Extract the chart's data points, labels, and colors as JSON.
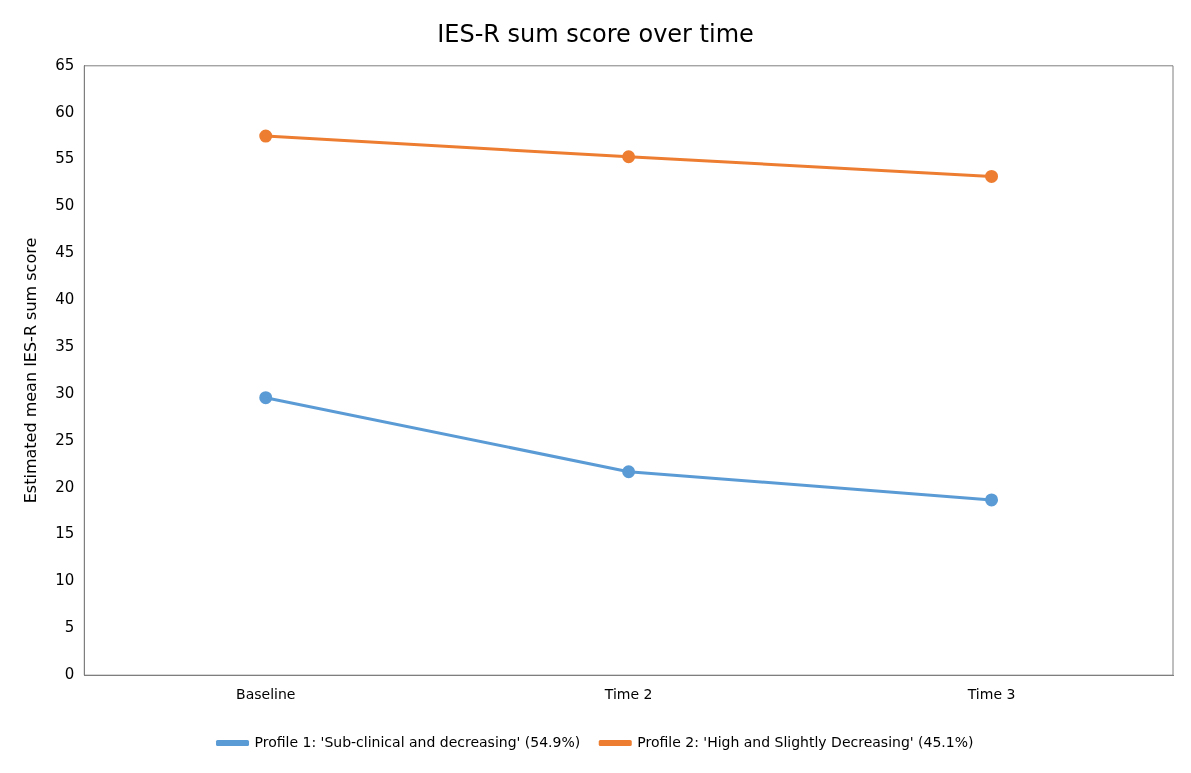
{
  "chart_data": {
    "type": "line",
    "title": "IES-R sum score over time",
    "ylabel": "Estimated mean IES-R sum score",
    "categories": [
      "Baseline",
      "Time 2",
      "Time 3"
    ],
    "series": [
      {
        "name": "Profile 1: 'Sub-clinical and decreasing' (54.9%)",
        "color": "#5b9bd5",
        "values": [
          29.6,
          21.7,
          18.7
        ]
      },
      {
        "name": "Profile 2: 'High and Slightly Decreasing' (45.1%)",
        "color": "#ed7d31",
        "values": [
          57.5,
          55.3,
          53.2
        ]
      }
    ],
    "ylim": [
      0,
      65
    ],
    "yticks": [
      0,
      5,
      10,
      15,
      20,
      25,
      30,
      35,
      40,
      45,
      50,
      55,
      60,
      65
    ],
    "grid": false,
    "legend": "bottom",
    "marker": "circle",
    "line_style": "solid"
  }
}
